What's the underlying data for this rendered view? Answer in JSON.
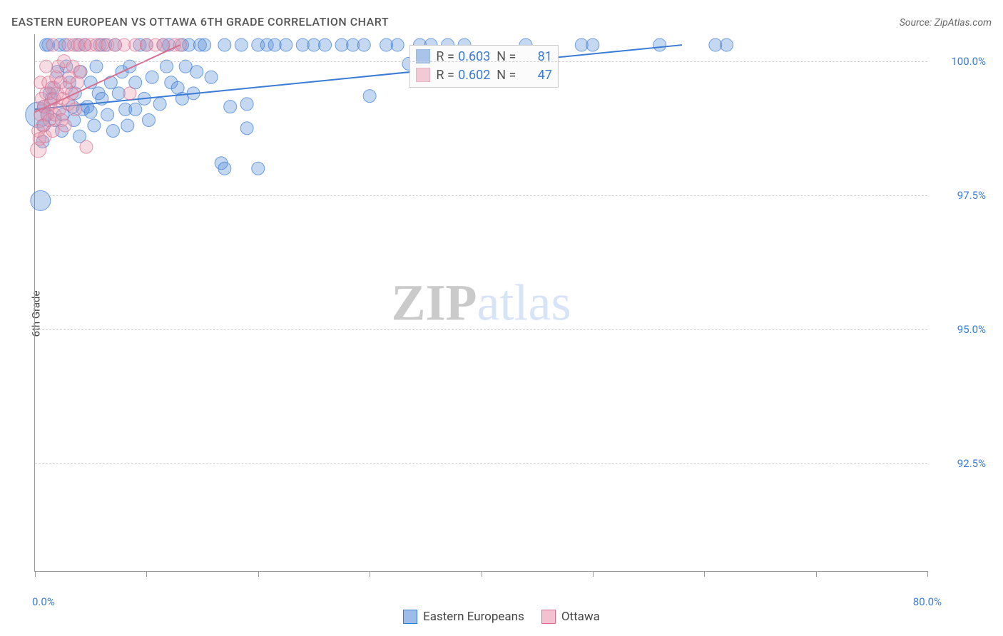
{
  "header": {
    "title": "EASTERN EUROPEAN VS OTTAWA 6TH GRADE CORRELATION CHART",
    "source": "Source: ZipAtlas.com"
  },
  "chart": {
    "type": "scatter",
    "background_color": "#ffffff",
    "grid_color": "#d0d0d0",
    "axis_color": "#999999",
    "label_color": "#3a7bd5",
    "text_color": "#444444",
    "label_fontsize": 15,
    "y_axis_title": "6th Grade",
    "xlim": [
      0,
      80
    ],
    "ylim": [
      90.5,
      100.5
    ],
    "xlim_labels": [
      "0.0%",
      "80.0%"
    ],
    "x_ticks": [
      0,
      10,
      20,
      30,
      40,
      50,
      60,
      70,
      80
    ],
    "y_gridlines": [
      {
        "value": 100.0,
        "label": "100.0%"
      },
      {
        "value": 97.5,
        "label": "97.5%"
      },
      {
        "value": 95.0,
        "label": "95.0%"
      },
      {
        "value": 92.5,
        "label": "92.5%"
      }
    ],
    "marker_radius": 9,
    "marker_fill_opacity": 0.35,
    "marker_stroke_opacity": 0.7,
    "series": [
      {
        "name": "Eastern Europeans",
        "color": "#5a8fd6",
        "stroke": "#3a7bd5",
        "r_value": "0.603",
        "n_value": "81",
        "trend": {
          "x1": 0,
          "y1": 99.1,
          "x2": 58,
          "y2": 100.3,
          "width": 2
        },
        "points": [
          [
            0.3,
            99.0,
            18
          ],
          [
            0.5,
            97.4,
            14
          ],
          [
            0.8,
            98.8,
            9
          ],
          [
            0.8,
            99.15,
            9
          ],
          [
            0.7,
            98.5,
            9
          ],
          [
            1.0,
            100.3,
            9
          ],
          [
            1.1,
            99.0,
            9
          ],
          [
            1.5,
            99.3,
            9
          ],
          [
            1.7,
            99.5,
            9
          ],
          [
            1.3,
            99.4,
            9
          ],
          [
            1.2,
            100.3,
            9
          ],
          [
            1.8,
            98.9,
            9
          ],
          [
            2.0,
            99.8,
            9
          ],
          [
            2.2,
            100.3,
            9
          ],
          [
            2.5,
            99.0,
            9
          ],
          [
            2.8,
            99.9,
            9
          ],
          [
            2.4,
            98.7,
            9
          ],
          [
            2.7,
            100.3,
            9
          ],
          [
            3.1,
            99.6,
            9
          ],
          [
            3.4,
            99.15,
            9
          ],
          [
            3.6,
            99.4,
            9
          ],
          [
            3.8,
            100.3,
            9
          ],
          [
            3.5,
            98.9,
            9
          ],
          [
            4.0,
            98.6,
            9
          ],
          [
            4.3,
            99.1,
            9
          ],
          [
            4.1,
            99.8,
            9
          ],
          [
            4.7,
            99.15,
            9
          ],
          [
            4.5,
            100.3,
            9
          ],
          [
            5.0,
            99.6,
            9
          ],
          [
            5.3,
            98.8,
            9
          ],
          [
            5.0,
            99.05,
            9
          ],
          [
            5.5,
            99.9,
            9
          ],
          [
            5.7,
            99.4,
            9
          ],
          [
            5.8,
            100.3,
            9
          ],
          [
            6.0,
            99.3,
            9
          ],
          [
            6.3,
            100.3,
            9
          ],
          [
            6.5,
            99.0,
            9
          ],
          [
            6.8,
            99.6,
            9
          ],
          [
            7.0,
            98.7,
            9
          ],
          [
            7.2,
            100.3,
            9
          ],
          [
            7.5,
            99.4,
            9
          ],
          [
            7.8,
            99.8,
            9
          ],
          [
            8.1,
            99.1,
            9
          ],
          [
            8.5,
            99.9,
            9
          ],
          [
            8.3,
            98.8,
            9
          ],
          [
            9.0,
            99.1,
            9
          ],
          [
            9.0,
            99.6,
            9
          ],
          [
            9.4,
            100.3,
            9
          ],
          [
            9.8,
            99.3,
            9
          ],
          [
            10.2,
            98.9,
            9
          ],
          [
            10.5,
            99.7,
            9
          ],
          [
            10.0,
            100.3,
            9
          ],
          [
            11.2,
            99.2,
            9
          ],
          [
            11.5,
            100.3,
            9
          ],
          [
            11.8,
            99.9,
            9
          ],
          [
            12.2,
            99.6,
            9
          ],
          [
            12.0,
            100.3,
            9
          ],
          [
            12.8,
            99.5,
            9
          ],
          [
            13.2,
            99.3,
            9
          ],
          [
            13.2,
            100.3,
            9
          ],
          [
            13.5,
            99.9,
            9
          ],
          [
            13.8,
            100.3,
            9
          ],
          [
            14.2,
            99.4,
            9
          ],
          [
            14.5,
            99.8,
            9
          ],
          [
            14.8,
            100.3,
            9
          ],
          [
            15.2,
            100.3,
            9
          ],
          [
            15.8,
            99.7,
            9
          ],
          [
            16.7,
            98.1,
            9
          ],
          [
            17.0,
            100.3,
            9
          ],
          [
            17.5,
            99.15,
            9
          ],
          [
            18.5,
            100.3,
            9
          ],
          [
            19.0,
            99.2,
            9
          ],
          [
            17.0,
            98.0,
            9
          ],
          [
            19.0,
            98.75,
            9
          ],
          [
            20.0,
            98.0,
            9
          ],
          [
            20.0,
            100.3,
            9
          ],
          [
            20.8,
            100.3,
            9
          ],
          [
            21.5,
            100.3,
            9
          ],
          [
            22.5,
            100.3,
            9
          ],
          [
            24.0,
            100.3,
            9
          ],
          [
            25.0,
            100.3,
            9
          ],
          [
            26.0,
            100.3,
            9
          ],
          [
            27.5,
            100.3,
            9
          ],
          [
            28.5,
            100.3,
            9
          ],
          [
            29.5,
            100.3,
            9
          ],
          [
            30.0,
            99.35,
            9
          ],
          [
            31.5,
            100.3,
            9
          ],
          [
            32.5,
            100.3,
            9
          ],
          [
            33.5,
            99.95,
            9
          ],
          [
            34.5,
            100.3,
            9
          ],
          [
            35.5,
            100.3,
            9
          ],
          [
            37.0,
            100.3,
            9
          ],
          [
            38.5,
            100.3,
            9
          ],
          [
            44.0,
            100.3,
            9
          ],
          [
            49.0,
            100.3,
            9
          ],
          [
            50.0,
            100.3,
            9
          ],
          [
            56.0,
            100.3,
            9
          ],
          [
            61.0,
            100.3,
            9
          ],
          [
            62.0,
            100.3,
            9
          ]
        ]
      },
      {
        "name": "Ottawa",
        "color": "#e99ab0",
        "stroke": "#d96f8f",
        "r_value": "0.602",
        "n_value": "47",
        "trend": {
          "x1": 0,
          "y1": 99.05,
          "x2": 13,
          "y2": 100.3,
          "width": 2
        },
        "points": [
          [
            0.3,
            98.35,
            11
          ],
          [
            0.3,
            98.7,
            9
          ],
          [
            0.5,
            99.0,
            9
          ],
          [
            0.4,
            98.55,
            9
          ],
          [
            0.6,
            99.3,
            9
          ],
          [
            0.7,
            98.8,
            9
          ],
          [
            0.5,
            99.6,
            9
          ],
          [
            0.8,
            99.15,
            9
          ],
          [
            1.0,
            99.4,
            9
          ],
          [
            0.9,
            98.6,
            9
          ],
          [
            1.1,
            99.0,
            9
          ],
          [
            1.2,
            99.6,
            9
          ],
          [
            1.0,
            99.9,
            9
          ],
          [
            1.3,
            98.9,
            9
          ],
          [
            1.4,
            99.2,
            9
          ],
          [
            1.5,
            99.5,
            9
          ],
          [
            1.6,
            98.7,
            9
          ],
          [
            1.7,
            99.3,
            9
          ],
          [
            1.8,
            99.0,
            9
          ],
          [
            1.9,
            99.7,
            9
          ],
          [
            1.6,
            100.3,
            9
          ],
          [
            2.0,
            99.4,
            9
          ],
          [
            2.1,
            99.9,
            9
          ],
          [
            2.2,
            99.1,
            9
          ],
          [
            2.3,
            99.6,
            9
          ],
          [
            2.4,
            98.9,
            9
          ],
          [
            2.5,
            99.3,
            9
          ],
          [
            2.6,
            100.0,
            9
          ],
          [
            2.8,
            99.5,
            9
          ],
          [
            2.7,
            98.8,
            9
          ],
          [
            3.0,
            99.2,
            9
          ],
          [
            3.1,
            99.7,
            9
          ],
          [
            3.0,
            100.3,
            9
          ],
          [
            3.3,
            99.4,
            9
          ],
          [
            3.4,
            99.9,
            9
          ],
          [
            3.6,
            99.1,
            9
          ],
          [
            3.8,
            99.6,
            9
          ],
          [
            3.5,
            100.3,
            9
          ],
          [
            4.0,
            99.8,
            9
          ],
          [
            4.0,
            100.3,
            9
          ],
          [
            4.5,
            100.3,
            9
          ],
          [
            4.6,
            98.4,
            9
          ],
          [
            5.0,
            100.3,
            9
          ],
          [
            5.5,
            100.3,
            9
          ],
          [
            6.0,
            100.3,
            9
          ],
          [
            6.5,
            100.3,
            9
          ],
          [
            7.2,
            100.3,
            9
          ],
          [
            8.0,
            100.3,
            9
          ],
          [
            8.5,
            99.4,
            9
          ],
          [
            9.0,
            100.3,
            9
          ],
          [
            10.0,
            100.3,
            9
          ],
          [
            10.8,
            100.3,
            9
          ],
          [
            11.5,
            100.3,
            9
          ],
          [
            12.5,
            100.3,
            9
          ],
          [
            13.0,
            100.3,
            9
          ]
        ]
      }
    ],
    "stats_box": {
      "top_pct": 2,
      "left_pct": 42,
      "rlabel": "R =",
      "nlabel": "N ="
    },
    "watermark": {
      "bold_text": "ZIP",
      "light_text": "atlas",
      "bold_color": "#a0a0a0",
      "light_color": "#b7cdef",
      "opacity": 0.55
    },
    "legend_below": {
      "items": [
        {
          "label": "Eastern Europeans",
          "fill": "#9cbde8",
          "stroke": "#3a7bd5"
        },
        {
          "label": "Ottawa",
          "fill": "#f3c1cf",
          "stroke": "#d96f8f"
        }
      ]
    }
  }
}
